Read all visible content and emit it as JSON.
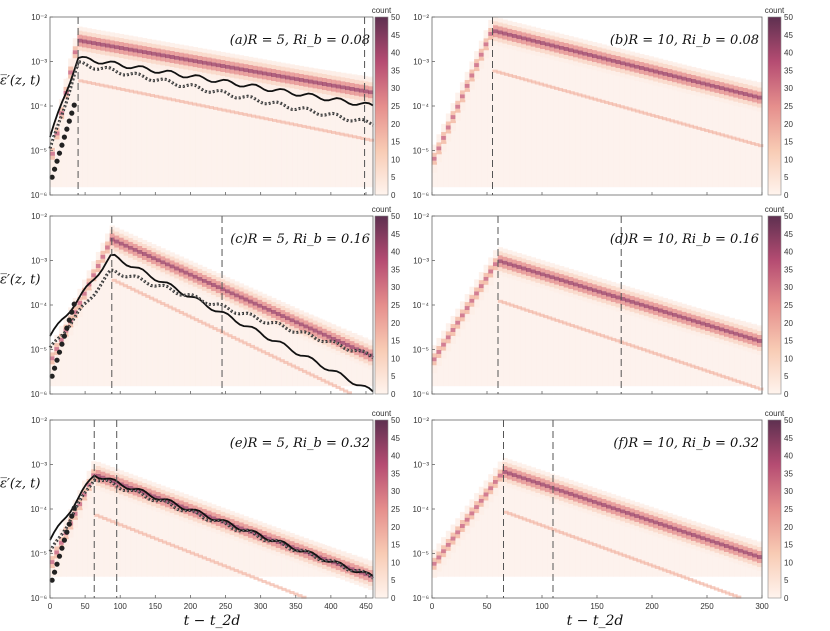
{
  "figure": {
    "ylabel": "ε̅′(z, t)",
    "xlabel": "t − t_2d",
    "colorbar_label": "count"
  },
  "chart_data": [
    {
      "id": "a",
      "type": "heatmap",
      "title": "(a)R = 5, Ri_b = 0.08",
      "xlim": [
        0,
        460
      ],
      "ylim": [
        1e-06,
        0.01
      ],
      "yscale": "log",
      "xticks": [
        0,
        50,
        100,
        150,
        200,
        250,
        300,
        350,
        400,
        450
      ],
      "yticks": [
        "10^-6",
        "10^-5",
        "10^-4",
        "10^-3",
        "10^-2"
      ],
      "colorbar": {
        "label": "count",
        "range": [
          0,
          50
        ],
        "ticks": [
          0,
          5,
          10,
          15,
          20,
          25,
          30,
          35,
          40,
          45,
          50
        ]
      },
      "vlines": [
        40,
        448
      ],
      "peak_t": 40,
      "peak_val": 0.003,
      "end_val": 0.0002,
      "lines": [
        {
          "name": "upper solid",
          "peak": 0.0012,
          "end": 0.0001
        },
        {
          "name": "gray markers",
          "peak": 0.0009,
          "end": 4e-05
        }
      ]
    },
    {
      "id": "b",
      "type": "heatmap",
      "title": "(b)R = 10, Ri_b = 0.08",
      "xlim": [
        0,
        300
      ],
      "ylim": [
        1e-06,
        0.01
      ],
      "yscale": "log",
      "xticks": [
        0,
        50,
        100,
        150,
        200,
        250,
        300
      ],
      "yticks": [
        "10^-6",
        "10^-5",
        "10^-4",
        "10^-3",
        "10^-2"
      ],
      "colorbar": {
        "label": "count",
        "range": [
          0,
          50
        ],
        "ticks": [
          0,
          5,
          10,
          15,
          20,
          25,
          30,
          35,
          40,
          45,
          50
        ]
      },
      "vlines": [
        55
      ],
      "peak_t": 55,
      "peak_val": 0.005,
      "end_val": 0.00015,
      "lines": []
    },
    {
      "id": "c",
      "type": "heatmap",
      "title": "(c)R = 5, Ri_b = 0.16",
      "xlim": [
        0,
        460
      ],
      "ylim": [
        1e-06,
        0.01
      ],
      "yscale": "log",
      "xticks": [
        0,
        50,
        100,
        150,
        200,
        250,
        300,
        350,
        400,
        450
      ],
      "yticks": [
        "10^-6",
        "10^-5",
        "10^-4",
        "10^-3",
        "10^-2"
      ],
      "colorbar": {
        "label": "count",
        "range": [
          0,
          50
        ],
        "ticks": [
          0,
          5,
          10,
          15,
          20,
          25,
          30,
          35,
          40,
          45,
          50
        ]
      },
      "vlines": [
        88,
        245
      ],
      "peak_t": 88,
      "peak_val": 0.003,
      "end_val": 7e-06,
      "lines": [
        {
          "name": "upper solid",
          "peak": 0.0013,
          "end": 1.1e-06
        },
        {
          "name": "gray markers",
          "peak": 0.0006,
          "end": 7e-06
        }
      ]
    },
    {
      "id": "d",
      "type": "heatmap",
      "title": "(d)R = 10, Ri_b = 0.16",
      "xlim": [
        0,
        300
      ],
      "ylim": [
        1e-06,
        0.01
      ],
      "yscale": "log",
      "xticks": [
        0,
        50,
        100,
        150,
        200,
        250,
        300
      ],
      "yticks": [
        "10^-6",
        "10^-5",
        "10^-4",
        "10^-3",
        "10^-2"
      ],
      "colorbar": {
        "label": "count",
        "range": [
          0,
          50
        ],
        "ticks": [
          0,
          5,
          10,
          15,
          20,
          25,
          30,
          35,
          40,
          45,
          50
        ]
      },
      "vlines": [
        60,
        172
      ],
      "peak_t": 60,
      "peak_val": 0.001,
      "end_val": 1.5e-05,
      "lines": []
    },
    {
      "id": "e",
      "type": "heatmap",
      "title": "(e)R = 5, Ri_b = 0.32",
      "xlim": [
        0,
        460
      ],
      "ylim": [
        1e-06,
        0.01
      ],
      "yscale": "log",
      "xticks": [
        0,
        50,
        100,
        150,
        200,
        250,
        300,
        350,
        400,
        450
      ],
      "yticks": [
        "10^-6",
        "10^-5",
        "10^-4",
        "10^-3",
        "10^-2"
      ],
      "colorbar": {
        "label": "count",
        "range": [
          0,
          50
        ],
        "ticks": [
          0,
          5,
          10,
          15,
          20,
          25,
          30,
          35,
          40,
          45,
          50
        ]
      },
      "vlines": [
        63,
        95
      ],
      "peak_t": 63,
      "peak_val": 0.0006,
      "end_val": 3e-06,
      "lines": [
        {
          "name": "upper solid",
          "peak": 0.0006,
          "end": 3e-06
        },
        {
          "name": "gray markers",
          "peak": 0.0005,
          "end": 3e-06
        }
      ]
    },
    {
      "id": "f",
      "type": "heatmap",
      "title": "(f)R = 10, Ri_b = 0.32",
      "xlim": [
        0,
        300
      ],
      "ylim": [
        1e-06,
        0.01
      ],
      "yscale": "log",
      "xticks": [
        0,
        50,
        100,
        150,
        200,
        250,
        300
      ],
      "yticks": [
        "10^-6",
        "10^-5",
        "10^-4",
        "10^-3",
        "10^-2"
      ],
      "colorbar": {
        "label": "count",
        "range": [
          0,
          50
        ],
        "ticks": [
          0,
          5,
          10,
          15,
          20,
          25,
          30,
          35,
          40,
          45,
          50
        ]
      },
      "vlines": [
        65,
        110
      ],
      "peak_t": 65,
      "peak_val": 0.0007,
      "end_val": 8e-06,
      "lines": []
    }
  ]
}
